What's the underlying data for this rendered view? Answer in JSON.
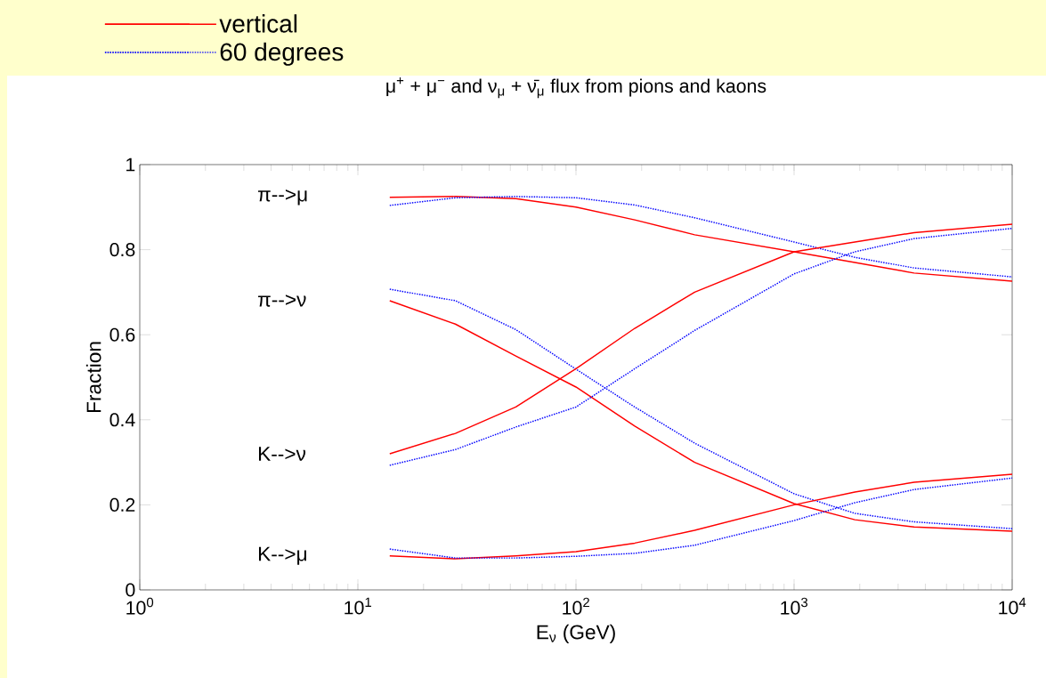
{
  "chart_data": {
    "type": "line",
    "title": "μ$^{+}$ + μ$^{−}$ and ν$_{μ}$ + ν̄$_{μ}$ flux from pions and kaons",
    "xlabel": "E$_{ν}$ (GeV)",
    "ylabel": "Fraction",
    "log": "x",
    "legend": "top left",
    "xlim": [
      1,
      10000
    ],
    "ylim": [
      0,
      1
    ],
    "xticks": [
      {
        "value": 1,
        "label": "10$^{0}$"
      },
      {
        "value": 10,
        "label": "10$^{1}$"
      },
      {
        "value": 100,
        "label": "10$^{2}$"
      },
      {
        "value": 1000,
        "label": "10$^{3}$"
      },
      {
        "value": 10000,
        "label": "10$^{4}$"
      }
    ],
    "yticks": [
      0,
      0.2,
      0.4,
      0.6,
      0.8,
      1
    ],
    "x": [
      14,
      28,
      53,
      100,
      186,
      350,
      1000,
      1900,
      3550,
      10000
    ],
    "series": [
      {
        "name": "vertical",
        "color": "#ff0000",
        "line_style": "solid",
        "values": [
          0.923,
          0.925,
          0.92,
          0.9,
          0.87,
          0.835,
          0.795,
          0.77,
          0.745,
          0.726
        ]
      },
      {
        "name": "60 degrees",
        "color": "#0000ff",
        "line_style": "dotted",
        "values": [
          0.904,
          0.922,
          0.925,
          0.922,
          0.905,
          0.875,
          0.818,
          0.782,
          0.757,
          0.736
        ]
      },
      {
        "color": "#ff0000",
        "line_style": "solid",
        "values": [
          0.68,
          0.625,
          0.55,
          0.477,
          0.385,
          0.3,
          0.203,
          0.165,
          0.148,
          0.138
        ]
      },
      {
        "color": "#0000ff",
        "line_style": "dotted",
        "values": [
          0.707,
          0.68,
          0.612,
          0.519,
          0.43,
          0.345,
          0.226,
          0.18,
          0.16,
          0.144
        ]
      },
      {
        "color": "#ff0000",
        "line_style": "solid",
        "values": [
          0.32,
          0.368,
          0.43,
          0.52,
          0.615,
          0.7,
          0.795,
          0.818,
          0.84,
          0.86
        ]
      },
      {
        "color": "#0000ff",
        "line_style": "dotted",
        "values": [
          0.293,
          0.33,
          0.383,
          0.43,
          0.52,
          0.61,
          0.743,
          0.795,
          0.826,
          0.85
        ]
      },
      {
        "color": "#ff0000",
        "line_style": "solid",
        "values": [
          0.08,
          0.073,
          0.08,
          0.09,
          0.11,
          0.14,
          0.2,
          0.23,
          0.253,
          0.272
        ]
      },
      {
        "color": "#0000ff",
        "line_style": "dotted",
        "values": [
          0.096,
          0.075,
          0.075,
          0.079,
          0.086,
          0.105,
          0.163,
          0.205,
          0.236,
          0.263
        ]
      }
    ],
    "annotations": [
      "π-->μ",
      "π-->ν",
      "K-->ν",
      "K-->μ"
    ]
  }
}
